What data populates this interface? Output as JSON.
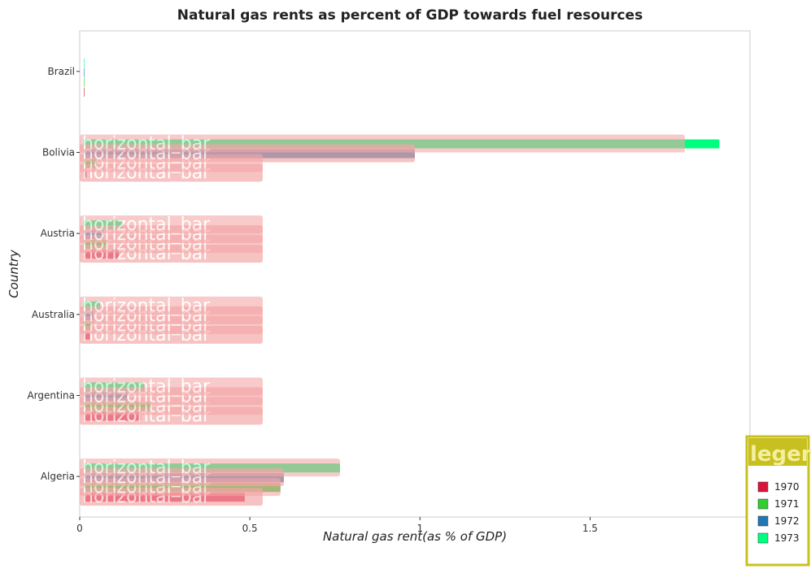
{
  "chart_data": {
    "type": "bar",
    "orientation": "horizontal",
    "title": "Natural gas rents as percent of GDP towards fuel resources",
    "xlabel": "Natural gas rent(as % of GDP)",
    "ylabel": "Country",
    "categories": [
      "Algeria",
      "Argentina",
      "Australia",
      "Austria",
      "Bolivia",
      "Brazil"
    ],
    "series": [
      {
        "name": "1970",
        "color": "#dc143c",
        "values": [
          0.485,
          0.18,
          0.03,
          0.115,
          0.02,
          0.001
        ]
      },
      {
        "name": "1971",
        "color": "#32cd32",
        "values": [
          0.59,
          0.21,
          0.035,
          0.08,
          0.05,
          0.002
        ]
      },
      {
        "name": "1972",
        "color": "#1f77b4",
        "values": [
          0.6,
          0.14,
          0.04,
          0.07,
          0.985,
          0.003
        ]
      },
      {
        "name": "1973",
        "color": "#00ff7f",
        "values": [
          0.765,
          0.19,
          0.06,
          0.125,
          1.88,
          0.004
        ]
      }
    ],
    "xlim": [
      0,
      1.97
    ],
    "xticks": [
      0,
      0.5,
      1,
      1.5
    ],
    "xtick_labels": [
      "0",
      "0.5",
      "1",
      "1.5"
    ],
    "grid": false,
    "legend_placement": "bottom-right",
    "legend_title": "legen",
    "annotation_label": "horizontal_bar"
  }
}
